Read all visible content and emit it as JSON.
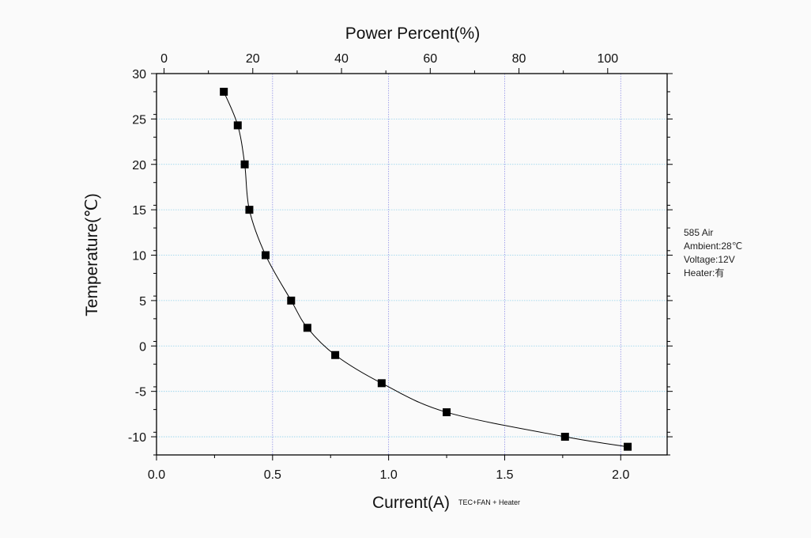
{
  "chart_data": {
    "type": "scatter",
    "title": "",
    "xlabel": "Current(A)",
    "xlabel_suffix": "TEC+FAN + Heater",
    "ylabel": "Temperature(℃)",
    "x2label": "Power Percent(%)",
    "xlim": [
      0.0,
      2.2
    ],
    "ylim": [
      -12,
      30
    ],
    "x2lim": [
      -1.7,
      113.4
    ],
    "xticks": [
      "0.0",
      "0.5",
      "1.0",
      "1.5",
      "2.0"
    ],
    "yticks": [
      "-10",
      "-5",
      "0",
      "5",
      "10",
      "15",
      "20",
      "25",
      "30"
    ],
    "x2ticks": [
      "0",
      "20",
      "40",
      "60",
      "80",
      "100"
    ],
    "grid": true,
    "series": [
      {
        "x": [
          0.29,
          0.35,
          0.38,
          0.4,
          0.47,
          0.58,
          0.65,
          0.77,
          0.97,
          1.25,
          1.76,
          2.03
        ],
        "y": [
          28,
          24.3,
          20,
          15,
          10,
          5,
          2,
          -1,
          -4.1,
          -7.3,
          -10,
          -11.1
        ]
      }
    ]
  },
  "annotation": {
    "lines": [
      "585 Air",
      "Ambient:28℃",
      "Voltage:12V",
      "Heater:有"
    ]
  },
  "colors": {
    "grid_x": "#8f8fe6",
    "grid_y": "#8fd0ea",
    "marker": "#000000",
    "line": "#000000"
  }
}
